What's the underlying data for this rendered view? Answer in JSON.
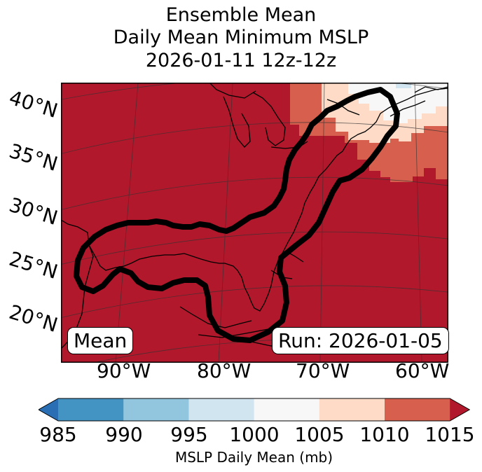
{
  "title": {
    "line1": "Ensemble Mean",
    "line2": "Daily Mean Minimum MSLP",
    "line3": "2026-01-11 12z-12z"
  },
  "map": {
    "projection": "conic",
    "extent": {
      "lon_min": -97,
      "lon_max": -57,
      "lat_min": 14,
      "lat_max": 42
    },
    "lat_labels": [
      "40°N",
      "35°N",
      "30°N",
      "25°N",
      "20°N"
    ],
    "lon_labels": [
      "90°W",
      "80°W",
      "70°W",
      "60°W"
    ],
    "gridlines": true,
    "field": "Ensemble mean MSLP daily mean; values >1015 mb over most of the domain, lower (1000–1015 mb) over the Northeast US / Atlantic Canada",
    "contour": "Thick black contour outlining the ensemble-mean region from the Gulf of Mexico and Florida up the US East Coast to Nova Scotia",
    "box_left": "Mean",
    "box_right": "Run: 2026-01-05"
  },
  "colorbar": {
    "label": "MSLP Daily Mean (mb)",
    "ticks": [
      "985",
      "990",
      "995",
      "1000",
      "1005",
      "1010",
      "1015"
    ],
    "extend": "both",
    "under_color": "#2a6fb3",
    "over_color": "#b2182b",
    "bins": [
      {
        "range": "985-990",
        "color": "#4393c3"
      },
      {
        "range": "990-995",
        "color": "#92c5de"
      },
      {
        "range": "995-1000",
        "color": "#d1e5f0"
      },
      {
        "range": "1000-1005",
        "color": "#f7f7f7"
      },
      {
        "range": "1005-1010",
        "color": "#fddbc7"
      },
      {
        "range": "1010-1015",
        "color": "#d6604d"
      }
    ]
  }
}
